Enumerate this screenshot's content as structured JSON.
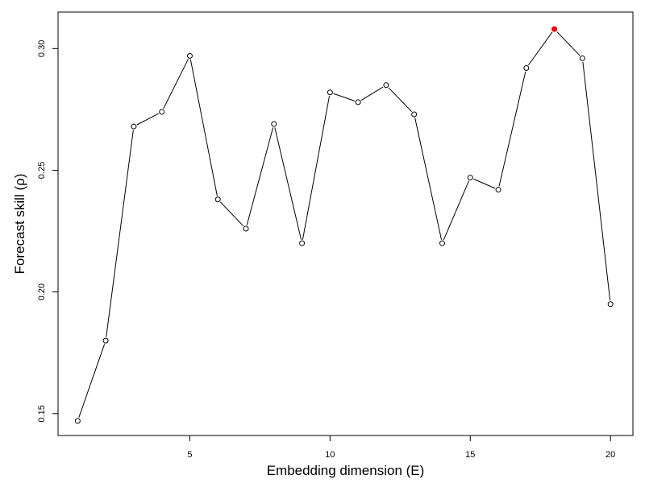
{
  "chart_data": {
    "type": "line",
    "title": "",
    "xlabel": "Embedding dimension (E)",
    "ylabel": "Forecast skill (ρ)",
    "xlim": [
      0.3,
      20.8
    ],
    "ylim": [
      0.141,
      0.315
    ],
    "xticks": [
      5,
      10,
      15,
      20
    ],
    "yticks": [
      0.15,
      0.2,
      0.25,
      0.3
    ],
    "xtick_labels": [
      "5",
      "10",
      "15",
      "20"
    ],
    "ytick_labels": [
      "0.15",
      "0.20",
      "0.25",
      "0.30"
    ],
    "grid": false,
    "legend": "none",
    "series": [
      {
        "x": [
          1,
          2,
          3,
          4,
          5,
          6,
          7,
          8,
          9,
          10,
          11,
          12,
          13,
          14,
          15,
          16,
          17,
          18,
          19,
          20
        ],
        "y": [
          0.147,
          0.18,
          0.268,
          0.274,
          0.297,
          0.238,
          0.226,
          0.269,
          0.22,
          0.282,
          0.278,
          0.285,
          0.273,
          0.22,
          0.247,
          0.242,
          0.292,
          0.308,
          0.296,
          0.195
        ],
        "line_color": "#000000",
        "marker_fill": "#ffffff",
        "highlight_index": 17,
        "highlight_color": "#ee0000"
      }
    ]
  }
}
